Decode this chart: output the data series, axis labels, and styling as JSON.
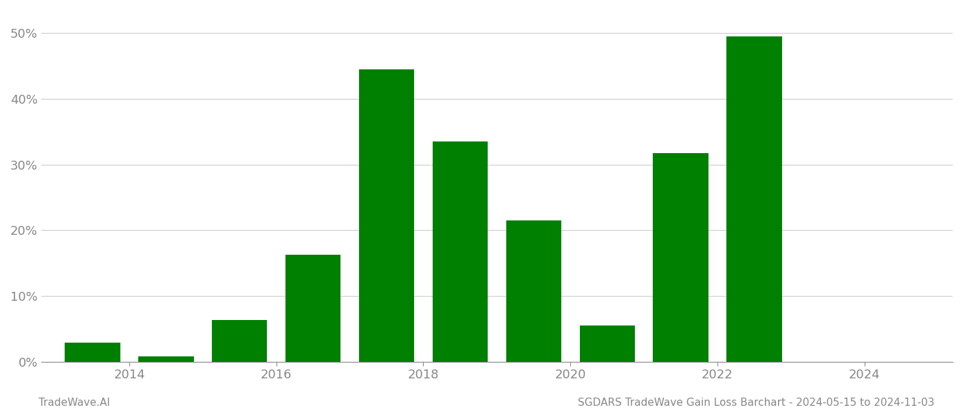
{
  "years": [
    2013.5,
    2014.5,
    2015.5,
    2016.5,
    2017.5,
    2018.5,
    2019.5,
    2020.5,
    2021.5,
    2022.5
  ],
  "values": [
    0.029,
    0.008,
    0.063,
    0.163,
    0.445,
    0.335,
    0.215,
    0.055,
    0.318,
    0.495
  ],
  "bar_color": "#008000",
  "background_color": "#ffffff",
  "grid_color": "#cccccc",
  "axis_label_color": "#888888",
  "ylabel_ticks": [
    0.0,
    0.1,
    0.2,
    0.3,
    0.4,
    0.5
  ],
  "xlim": [
    2012.8,
    2025.2
  ],
  "ylim": [
    0.0,
    0.535
  ],
  "xtick_labels": [
    "2014",
    "2016",
    "2018",
    "2020",
    "2022",
    "2024"
  ],
  "xtick_positions": [
    2014,
    2016,
    2018,
    2020,
    2022,
    2024
  ],
  "footer_left": "TradeWave.AI",
  "footer_right": "SGDARS TradeWave Gain Loss Barchart - 2024-05-15 to 2024-11-03",
  "footer_color": "#888888",
  "footer_fontsize": 11,
  "bar_width": 0.75
}
